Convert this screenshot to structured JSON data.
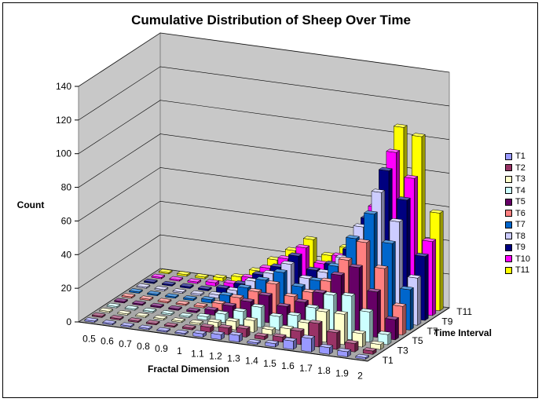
{
  "chart_data": {
    "type": "bar",
    "title": "Cumulative Distribution of Sheep Over Time",
    "xlabel": "Fractal Dimension",
    "ylabel": "Count",
    "zlabel": "Time Interval",
    "ylim": [
      0,
      140
    ],
    "yticks": [
      "0",
      "20",
      "40",
      "60",
      "80",
      "100",
      "120",
      "140"
    ],
    "categories": [
      "0.5",
      "0.6",
      "0.7",
      "0.8",
      "0.9",
      "1",
      "1.1",
      "1.2",
      "1.3",
      "1.4",
      "1.5",
      "1.6",
      "1.7",
      "1.8",
      "1.9",
      "2"
    ],
    "depth_ticks": [
      "T1",
      "T3",
      "T5",
      "T7",
      "T9",
      "T11"
    ],
    "legend_position": "right",
    "grid": true,
    "series": [
      {
        "name": "T1",
        "color": "#9999ff",
        "values": [
          0,
          0,
          0,
          0,
          0,
          0,
          2,
          3,
          4,
          1,
          2,
          5,
          8,
          4,
          3,
          1
        ]
      },
      {
        "name": "T2",
        "color": "#993366",
        "values": [
          0,
          0,
          0,
          0,
          0,
          1,
          3,
          4,
          5,
          2,
          3,
          8,
          14,
          10,
          5,
          2
        ]
      },
      {
        "name": "T3",
        "color": "#ffffcc",
        "values": [
          0,
          0,
          0,
          0,
          0,
          1,
          3,
          5,
          7,
          3,
          5,
          10,
          18,
          18,
          8,
          3
        ]
      },
      {
        "name": "T4",
        "color": "#ccffff",
        "values": [
          0,
          0,
          0,
          0,
          0,
          2,
          5,
          8,
          12,
          8,
          10,
          16,
          25,
          26,
          18,
          6
        ]
      },
      {
        "name": "T5",
        "color": "#660066",
        "values": [
          0,
          0,
          0,
          0,
          1,
          3,
          7,
          11,
          16,
          11,
          15,
          22,
          34,
          40,
          27,
          12
        ]
      },
      {
        "name": "T6",
        "color": "#ff8080",
        "values": [
          0,
          0,
          0,
          0,
          1,
          4,
          9,
          14,
          20,
          14,
          18,
          26,
          40,
          52,
          38,
          17
        ]
      },
      {
        "name": "T7",
        "color": "#0066cc",
        "values": [
          0,
          0,
          0,
          1,
          2,
          6,
          12,
          18,
          24,
          17,
          22,
          32,
          50,
          66,
          50,
          24
        ]
      },
      {
        "name": "T8",
        "color": "#ccccff",
        "values": [
          0,
          0,
          0,
          1,
          2,
          6,
          13,
          19,
          26,
          19,
          24,
          34,
          54,
          76,
          60,
          28
        ]
      },
      {
        "name": "T9",
        "color": "#000080",
        "values": [
          0,
          0,
          1,
          1,
          3,
          7,
          14,
          20,
          28,
          21,
          26,
          36,
          56,
          86,
          70,
          38
        ]
      },
      {
        "name": "T10",
        "color": "#ff00ff",
        "values": [
          0,
          0,
          1,
          2,
          3,
          8,
          15,
          22,
          30,
          22,
          28,
          38,
          60,
          94,
          80,
          44
        ]
      },
      {
        "name": "T11",
        "color": "#ffff00",
        "values": [
          0,
          1,
          1,
          2,
          4,
          9,
          17,
          24,
          32,
          24,
          30,
          40,
          64,
          106,
          102,
          58
        ]
      }
    ]
  }
}
